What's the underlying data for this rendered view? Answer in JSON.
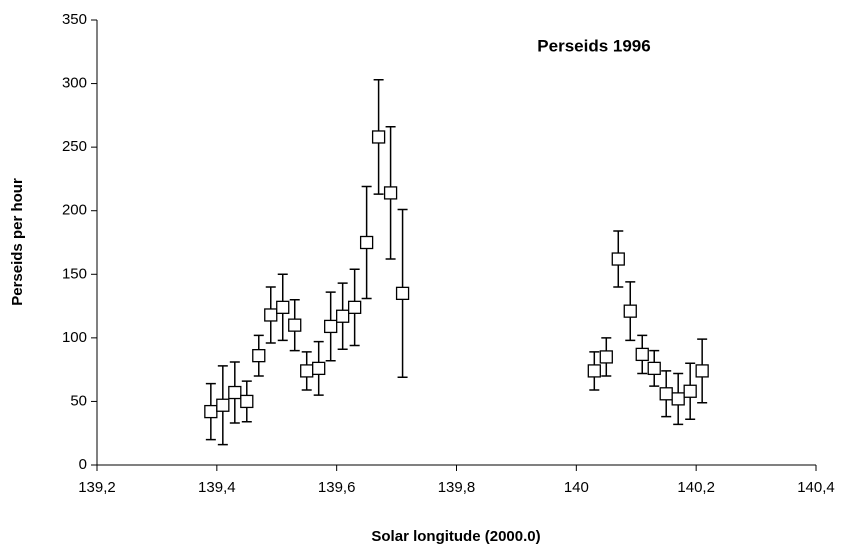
{
  "chart_data": {
    "type": "scatter",
    "title": "Perseids 1996",
    "xlabel": "Solar longitude (2000.0)",
    "ylabel": "Perseids per hour",
    "x": [
      139.39,
      139.41,
      139.43,
      139.45,
      139.47,
      139.49,
      139.51,
      139.53,
      139.55,
      139.57,
      139.59,
      139.61,
      139.63,
      139.65,
      139.67,
      139.69,
      139.71,
      140.03,
      140.05,
      140.07,
      140.09,
      140.11,
      140.13,
      140.15,
      140.17,
      140.19,
      140.21
    ],
    "values": [
      42,
      47,
      57,
      50,
      86,
      118,
      124,
      110,
      74,
      76,
      109,
      117,
      124,
      175,
      258,
      214,
      135,
      74,
      85,
      162,
      121,
      87,
      76,
      56,
      52,
      58,
      74
    ],
    "errors": [
      22,
      31,
      24,
      16,
      16,
      22,
      26,
      20,
      15,
      21,
      27,
      26,
      30,
      44,
      45,
      52,
      66,
      15,
      15,
      22,
      23,
      15,
      14,
      18,
      20,
      22,
      25
    ],
    "color": "#000000",
    "xlim": [
      139.2,
      140.4
    ],
    "xticks": [
      {
        "value": 139.2,
        "label": "139,2"
      },
      {
        "value": 139.4,
        "label": "139,4"
      },
      {
        "value": 139.6,
        "label": "139,6"
      },
      {
        "value": 139.8,
        "label": "139,8"
      },
      140,
      {
        "value": 140.2,
        "label": "140,2"
      },
      {
        "value": 140.4,
        "label": "140,4"
      }
    ],
    "ylim": [
      0,
      350
    ],
    "yticks": [
      0,
      50,
      100,
      150,
      200,
      250,
      300,
      350
    ],
    "grid": false
  }
}
